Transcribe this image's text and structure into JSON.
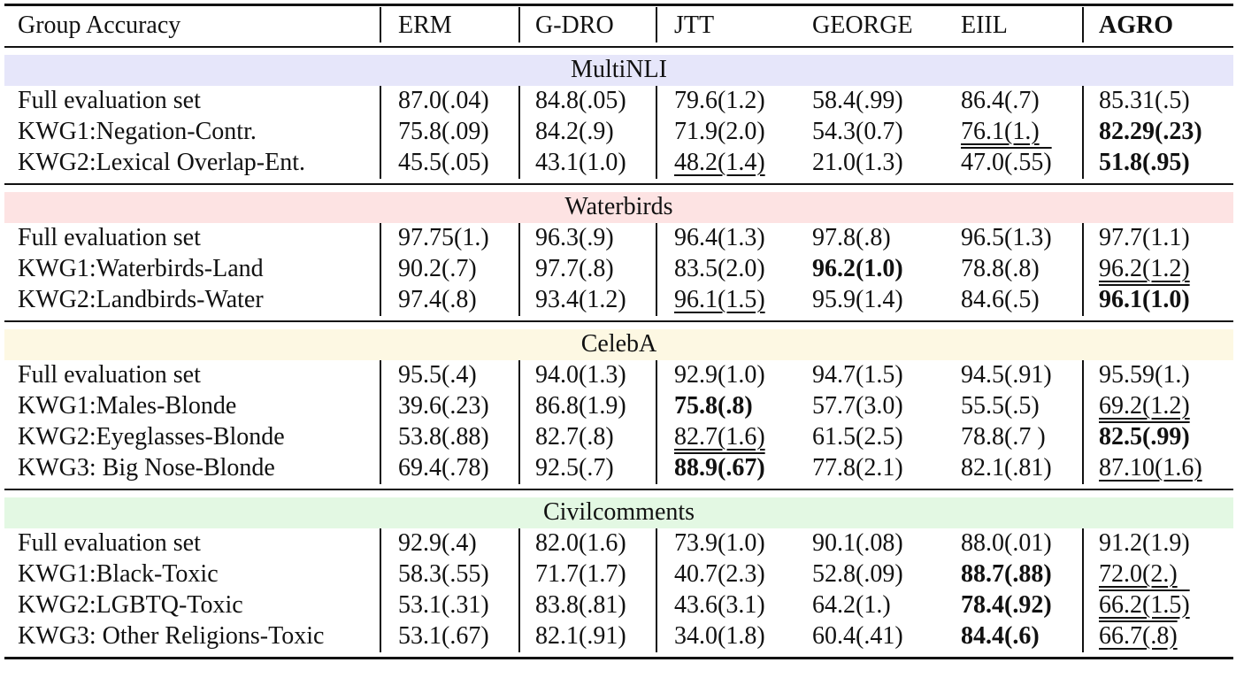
{
  "header": [
    "Group Accuracy",
    "ERM",
    "G-DRO",
    "JTT",
    "GEORGE",
    "EIIL",
    "AGRO"
  ],
  "header_bold": [
    6
  ],
  "sections": [
    {
      "title": "MultiNLI",
      "color": "#e6e6fa",
      "rows": [
        {
          "label": "Full evaluation set",
          "cells": [
            "87.0(.04)",
            "84.8(.05)",
            "79.6(1.2)",
            "58.4(.99)",
            "86.4(.7)",
            "85.31(.5)"
          ],
          "bold": [],
          "under": []
        },
        {
          "label": "KWG1:Negation-Contr.",
          "cells": [
            "75.8(.09)",
            "84.2(.9)",
            "71.9(2.0)",
            "54.3(0.7)",
            "76.1(1.)",
            "82.29(.23)"
          ],
          "bold": [
            5
          ],
          "under": [
            4
          ]
        },
        {
          "label": "KWG2:Lexical Overlap-Ent.",
          "cells": [
            "45.5(.05)",
            "43.1(1.0)",
            "48.2(1.4)",
            "21.0(1.3)",
            "47.0(.55)",
            "51.8(.95)"
          ],
          "bold": [
            5
          ],
          "under": [
            2
          ]
        }
      ]
    },
    {
      "title": "Waterbirds",
      "color": "#fde3e3",
      "rows": [
        {
          "label": "Full evaluation set",
          "cells": [
            "97.75(1.)",
            "96.3(.9)",
            "96.4(1.3)",
            "97.8(.8)",
            "96.5(1.3)",
            "97.7(1.1)"
          ],
          "bold": [],
          "under": []
        },
        {
          "label": "KWG1:Waterbirds-Land",
          "cells": [
            "90.2(.7)",
            "97.7(.8)",
            "83.5(2.0)",
            "96.2(1.0)",
            "78.8(.8)",
            "96.2(1.2)"
          ],
          "bold": [
            3
          ],
          "under": [
            5
          ]
        },
        {
          "label": "KWG2:Landbirds-Water",
          "cells": [
            "97.4(.8)",
            "93.4(1.2)",
            "96.1(1.5)",
            "95.9(1.4)",
            "84.6(.5)",
            "96.1(1.0)"
          ],
          "bold": [
            5
          ],
          "under": [
            2
          ]
        }
      ]
    },
    {
      "title": "CelebA",
      "color": "#fdf8e3",
      "rows": [
        {
          "label": "Full evaluation set",
          "cells": [
            "95.5(.4)",
            "94.0(1.3)",
            "92.9(1.0)",
            "94.7(1.5)",
            "94.5(.91)",
            "95.59(1.)"
          ],
          "bold": [],
          "under": []
        },
        {
          "label": "KWG1:Males-Blonde",
          "cells": [
            "39.6(.23)",
            "86.8(1.9)",
            "75.8(.8)",
            "57.7(3.0)",
            "55.5(.5)",
            "69.2(1.2)"
          ],
          "bold": [
            2
          ],
          "under": [
            5
          ]
        },
        {
          "label": "KWG2:Eyeglasses-Blonde",
          "cells": [
            "53.8(.88)",
            "82.7(.8)",
            "82.7(1.6)",
            "61.5(2.5)",
            "78.8(.7 )",
            "82.5(.99)"
          ],
          "bold": [
            5
          ],
          "under": [
            2
          ]
        },
        {
          "label": "KWG3: Big Nose-Blonde",
          "cells": [
            "69.4(.78)",
            "92.5(.7)",
            "88.9(.67)",
            "77.8(2.1)",
            "82.1(.81)",
            "87.10(1.6)"
          ],
          "bold": [
            2
          ],
          "under": [
            5
          ]
        }
      ]
    },
    {
      "title": "Civilcomments",
      "color": "#e3f8e3",
      "rows": [
        {
          "label": "Full evaluation set",
          "cells": [
            "92.9(.4)",
            "82.0(1.6)",
            "73.9(1.0)",
            "90.1(.08)",
            "88.0(.01)",
            "91.2(1.9)"
          ],
          "bold": [],
          "under": []
        },
        {
          "label": "KWG1:Black-Toxic",
          "cells": [
            "58.3(.55)",
            "71.7(1.7)",
            "40.7(2.3)",
            "52.8(.09)",
            "88.7(.88)",
            "72.0(2.)"
          ],
          "bold": [
            4
          ],
          "under": [
            5
          ]
        },
        {
          "label": "KWG2:LGBTQ-Toxic",
          "cells": [
            "53.1(.31)",
            "83.8(.81)",
            "43.6(3.1)",
            "64.2(1.)",
            "78.4(.92)",
            "66.2(1.5)"
          ],
          "bold": [
            4
          ],
          "under": [
            5
          ]
        },
        {
          "label": "KWG3: Other Religions-Toxic",
          "cells": [
            "53.1(.67)",
            "82.1(.91)",
            "34.0(1.8)",
            "60.4(.41)",
            "84.4(.6)",
            "66.7(.8)"
          ],
          "bold": [
            4
          ],
          "under": [
            5
          ]
        }
      ]
    }
  ]
}
